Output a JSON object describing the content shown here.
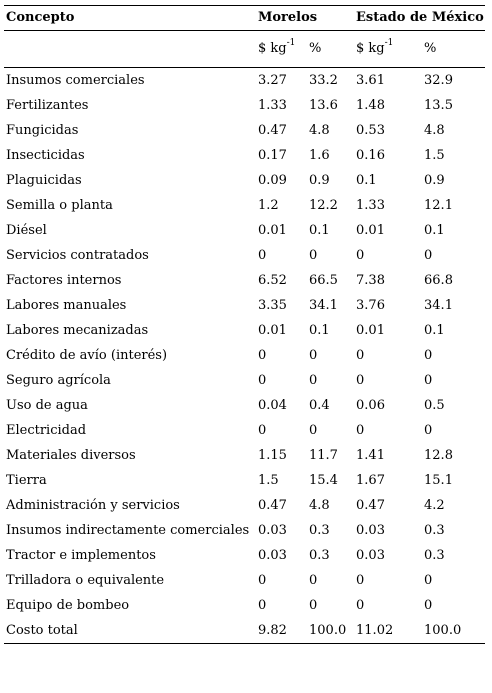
{
  "header": {
    "concept": "Concepto",
    "group1": "Morelos",
    "group2": "Estado de México",
    "unit_prefix": "$ kg",
    "unit_exp": "-1",
    "percent": "%"
  },
  "rows": [
    {
      "concepto": "Insumos comerciales",
      "m_kg": "3.27",
      "m_pct": "33.2",
      "e_kg": "3.61",
      "e_pct": "32.9"
    },
    {
      "concepto": "Fertilizantes",
      "m_kg": "1.33",
      "m_pct": "13.6",
      "e_kg": "1.48",
      "e_pct": "13.5"
    },
    {
      "concepto": "Fungicidas",
      "m_kg": "0.47",
      "m_pct": "4.8",
      "e_kg": "0.53",
      "e_pct": "4.8"
    },
    {
      "concepto": "Insecticidas",
      "m_kg": "0.17",
      "m_pct": "1.6",
      "e_kg": "0.16",
      "e_pct": "1.5"
    },
    {
      "concepto": "Plaguicidas",
      "m_kg": "0.09",
      "m_pct": "0.9",
      "e_kg": "0.1",
      "e_pct": "0.9"
    },
    {
      "concepto": "Semilla o planta",
      "m_kg": "1.2",
      "m_pct": "12.2",
      "e_kg": "1.33",
      "e_pct": "12.1"
    },
    {
      "concepto": "Diésel",
      "m_kg": "0.01",
      "m_pct": "0.1",
      "e_kg": "0.01",
      "e_pct": "0.1"
    },
    {
      "concepto": "Servicios contratados",
      "m_kg": "0",
      "m_pct": "0",
      "e_kg": "0",
      "e_pct": "0"
    },
    {
      "concepto": "Factores internos",
      "m_kg": "6.52",
      "m_pct": "66.5",
      "e_kg": "7.38",
      "e_pct": "66.8"
    },
    {
      "concepto": "Labores manuales",
      "m_kg": "3.35",
      "m_pct": "34.1",
      "e_kg": "3.76",
      "e_pct": "34.1"
    },
    {
      "concepto": "Labores mecanizadas",
      "m_kg": "0.01",
      "m_pct": "0.1",
      "e_kg": "0.01",
      "e_pct": "0.1"
    },
    {
      "concepto": "Crédito de avío (interés)",
      "m_kg": "0",
      "m_pct": "0",
      "e_kg": "0",
      "e_pct": "0"
    },
    {
      "concepto": "Seguro agrícola",
      "m_kg": "0",
      "m_pct": "0",
      "e_kg": "0",
      "e_pct": "0"
    },
    {
      "concepto": "Uso de agua",
      "m_kg": "0.04",
      "m_pct": "0.4",
      "e_kg": "0.06",
      "e_pct": "0.5"
    },
    {
      "concepto": "Electricidad",
      "m_kg": "0",
      "m_pct": "0",
      "e_kg": "0",
      "e_pct": "0"
    },
    {
      "concepto": "Materiales diversos",
      "m_kg": "1.15",
      "m_pct": "11.7",
      "e_kg": "1.41",
      "e_pct": "12.8"
    },
    {
      "concepto": "Tierra",
      "m_kg": "1.5",
      "m_pct": "15.4",
      "e_kg": "1.67",
      "e_pct": "15.1"
    },
    {
      "concepto": "Administración y servicios",
      "m_kg": "0.47",
      "m_pct": "4.8",
      "e_kg": "0.47",
      "e_pct": "4.2"
    },
    {
      "concepto": "Insumos indirectamente comerciales",
      "m_kg": "0.03",
      "m_pct": "0.3",
      "e_kg": "0.03",
      "e_pct": "0.3"
    },
    {
      "concepto": "Tractor e implementos",
      "m_kg": "0.03",
      "m_pct": "0.3",
      "e_kg": "0.03",
      "e_pct": "0.3"
    },
    {
      "concepto": "Trilladora o equivalente",
      "m_kg": "0",
      "m_pct": "0",
      "e_kg": "0",
      "e_pct": "0"
    },
    {
      "concepto": "Equipo de bombeo",
      "m_kg": "0",
      "m_pct": "0",
      "e_kg": "0",
      "e_pct": "0"
    },
    {
      "concepto": "Costo total",
      "m_kg": "9.82",
      "m_pct": "100.0",
      "e_kg": "11.02",
      "e_pct": "100.0"
    }
  ]
}
